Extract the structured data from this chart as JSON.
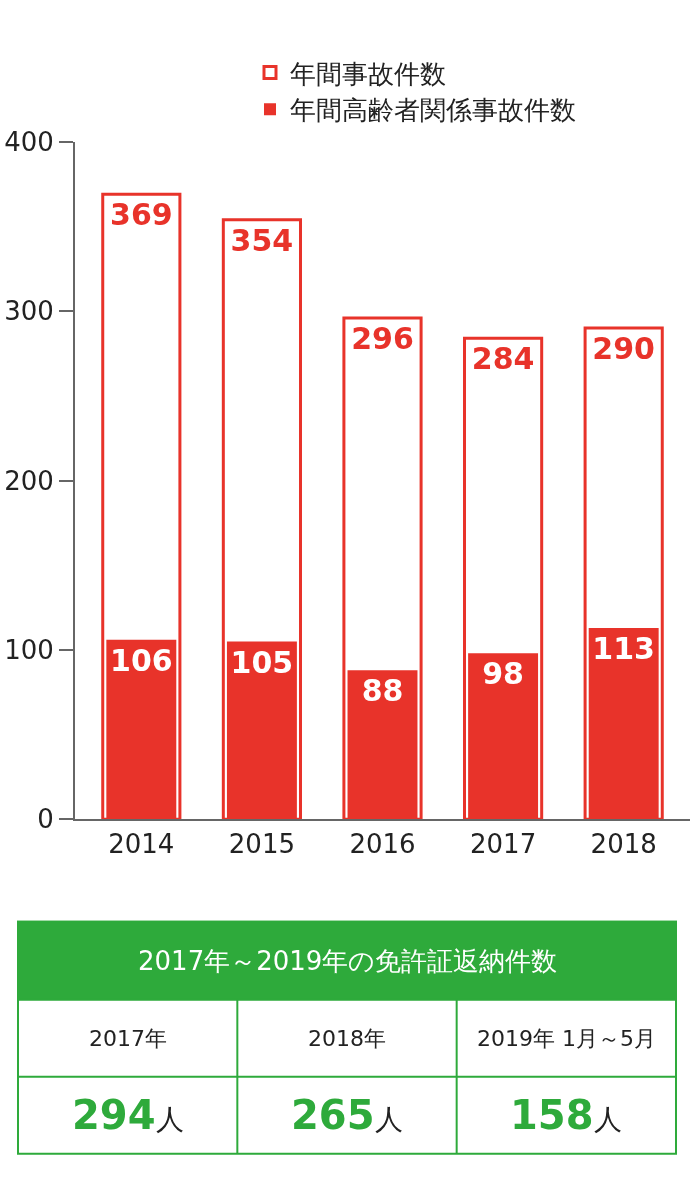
{
  "chart_data": [
    {
      "type": "bar",
      "categories": [
        "2014",
        "2015",
        "2016",
        "2017",
        "2018"
      ],
      "series": [
        {
          "name": "年間事故件数",
          "color": "#e8332a",
          "values": [
            369,
            354,
            296,
            284,
            290
          ]
        },
        {
          "name": "年間高齢者関係事故件数",
          "color": "#e8332a",
          "values": [
            106,
            105,
            88,
            98,
            113
          ]
        }
      ],
      "ylim": [
        0,
        400
      ],
      "yticks": [
        0,
        100,
        200,
        300,
        400
      ],
      "legend": "top right",
      "data_labels": true
    },
    {
      "type": "other",
      "title": "2017年～2019年の免許証返納件数",
      "categories": [
        "2017年",
        "2018年",
        "2019年 1月～5月"
      ],
      "values": [
        294,
        265,
        158
      ],
      "value_labels": [
        "294人",
        "265人",
        "158人"
      ],
      "color": "#2eaa3b"
    }
  ]
}
